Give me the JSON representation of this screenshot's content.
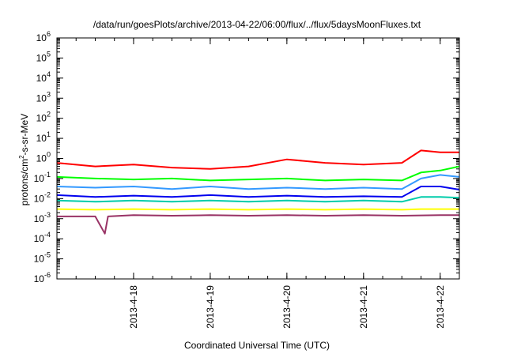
{
  "chart_data": {
    "type": "line",
    "title": "/data/run/goesPlots/archive/2013-04-22/06:00/flux/../flux/5daysMoonFluxes.txt",
    "xlabel": "Coordinated Universal Time (UTC)",
    "ylabel": {
      "pre": "protons/cm",
      "sup": "2",
      "post": "-s-sr-MeV"
    },
    "yscale": "log",
    "ylim": [
      1e-06,
      1000000.0
    ],
    "xlim": [
      "2013-04-17 00:00",
      "2013-04-22 06:00"
    ],
    "x_ticks": [
      {
        "x": "2013-04-18 00:00",
        "label": "2013-4-18"
      },
      {
        "x": "2013-04-19 00:00",
        "label": "2013-4-19"
      },
      {
        "x": "2013-04-20 00:00",
        "label": "2013-4-20"
      },
      {
        "x": "2013-04-21 00:00",
        "label": "2013-4-21"
      },
      {
        "x": "2013-04-22 00:00",
        "label": "2013-4-22"
      }
    ],
    "y_ticks": [
      {
        "value": 1e-06,
        "base": "10",
        "exp": "-6"
      },
      {
        "value": 1e-05,
        "base": "10",
        "exp": "-5"
      },
      {
        "value": 0.0001,
        "base": "10",
        "exp": "-4"
      },
      {
        "value": 0.001,
        "base": "10",
        "exp": "-3"
      },
      {
        "value": 0.01,
        "base": "10",
        "exp": "-2"
      },
      {
        "value": 0.1,
        "base": "10",
        "exp": "-1"
      },
      {
        "value": 1.0,
        "base": "10",
        "exp": "0"
      },
      {
        "value": 10.0,
        "base": "10",
        "exp": "1"
      },
      {
        "value": 100.0,
        "base": "10",
        "exp": "2"
      },
      {
        "value": 1000.0,
        "base": "10",
        "exp": "3"
      },
      {
        "value": 10000.0,
        "base": "10",
        "exp": "4"
      },
      {
        "value": 100000.0,
        "base": "10",
        "exp": "5"
      },
      {
        "value": 1000000.0,
        "base": "10",
        "exp": "6"
      }
    ],
    "grid": false,
    "legend": "none",
    "series": [
      {
        "color": "#ff0000",
        "x": [
          "2013-04-17 00:00",
          "2013-04-17 12:00",
          "2013-04-18 00:00",
          "2013-04-18 12:00",
          "2013-04-19 00:00",
          "2013-04-19 12:00",
          "2013-04-20 00:00",
          "2013-04-20 12:00",
          "2013-04-21 00:00",
          "2013-04-21 12:00",
          "2013-04-21 18:00",
          "2013-04-22 00:00",
          "2013-04-22 06:00"
        ],
        "y": [
          0.6,
          0.4,
          0.5,
          0.35,
          0.3,
          0.4,
          0.9,
          0.6,
          0.5,
          0.6,
          2.5,
          2.0,
          2.0
        ]
      },
      {
        "color": "#00ff00",
        "x": [
          "2013-04-17 00:00",
          "2013-04-17 12:00",
          "2013-04-18 00:00",
          "2013-04-18 12:00",
          "2013-04-19 00:00",
          "2013-04-19 12:00",
          "2013-04-20 00:00",
          "2013-04-20 12:00",
          "2013-04-21 00:00",
          "2013-04-21 12:00",
          "2013-04-21 18:00",
          "2013-04-22 00:00",
          "2013-04-22 06:00"
        ],
        "y": [
          0.12,
          0.1,
          0.09,
          0.1,
          0.08,
          0.09,
          0.1,
          0.08,
          0.09,
          0.08,
          0.2,
          0.25,
          0.4
        ]
      },
      {
        "color": "#3399ff",
        "x": [
          "2013-04-17 00:00",
          "2013-04-17 12:00",
          "2013-04-18 00:00",
          "2013-04-18 12:00",
          "2013-04-19 00:00",
          "2013-04-19 12:00",
          "2013-04-20 00:00",
          "2013-04-20 12:00",
          "2013-04-21 00:00",
          "2013-04-21 12:00",
          "2013-04-21 18:00",
          "2013-04-22 00:00",
          "2013-04-22 06:00"
        ],
        "y": [
          0.04,
          0.035,
          0.04,
          0.03,
          0.04,
          0.03,
          0.035,
          0.03,
          0.035,
          0.03,
          0.1,
          0.15,
          0.12
        ]
      },
      {
        "color": "#0000ee",
        "x": [
          "2013-04-17 00:00",
          "2013-04-17 12:00",
          "2013-04-18 00:00",
          "2013-04-18 12:00",
          "2013-04-19 00:00",
          "2013-04-19 12:00",
          "2013-04-20 00:00",
          "2013-04-20 12:00",
          "2013-04-21 00:00",
          "2013-04-21 12:00",
          "2013-04-21 18:00",
          "2013-04-22 00:00",
          "2013-04-22 06:00"
        ],
        "y": [
          0.015,
          0.012,
          0.014,
          0.012,
          0.015,
          0.012,
          0.014,
          0.012,
          0.013,
          0.012,
          0.04,
          0.04,
          0.028
        ]
      },
      {
        "color": "#00ccaa",
        "x": [
          "2013-04-17 00:00",
          "2013-04-17 12:00",
          "2013-04-18 00:00",
          "2013-04-18 12:00",
          "2013-04-19 00:00",
          "2013-04-19 12:00",
          "2013-04-20 00:00",
          "2013-04-20 12:00",
          "2013-04-21 00:00",
          "2013-04-21 12:00",
          "2013-04-21 18:00",
          "2013-04-22 00:00",
          "2013-04-22 06:00"
        ],
        "y": [
          0.008,
          0.007,
          0.008,
          0.007,
          0.008,
          0.007,
          0.008,
          0.007,
          0.008,
          0.007,
          0.012,
          0.012,
          0.011
        ]
      },
      {
        "color": "#ffff00",
        "x": [
          "2013-04-17 00:00",
          "2013-04-17 12:00",
          "2013-04-18 00:00",
          "2013-04-18 12:00",
          "2013-04-19 00:00",
          "2013-04-19 12:00",
          "2013-04-20 00:00",
          "2013-04-20 12:00",
          "2013-04-21 00:00",
          "2013-04-21 12:00",
          "2013-04-21 18:00",
          "2013-04-22 00:00",
          "2013-04-22 06:00"
        ],
        "y": [
          0.003,
          0.0028,
          0.003,
          0.0028,
          0.003,
          0.0028,
          0.003,
          0.0028,
          0.003,
          0.0028,
          0.003,
          0.003,
          0.003
        ]
      },
      {
        "color": "#993366",
        "x": [
          "2013-04-17 00:00",
          "2013-04-17 12:00",
          "2013-04-17 15:00",
          "2013-04-17 16:00",
          "2013-04-18 00:00",
          "2013-04-18 12:00",
          "2013-04-19 00:00",
          "2013-04-19 12:00",
          "2013-04-20 00:00",
          "2013-04-20 12:00",
          "2013-04-21 00:00",
          "2013-04-21 12:00",
          "2013-04-22 00:00",
          "2013-04-22 06:00"
        ],
        "y": [
          0.0013,
          0.0013,
          0.00018,
          0.0013,
          0.0015,
          0.0014,
          0.0015,
          0.0014,
          0.0015,
          0.0014,
          0.0015,
          0.0014,
          0.0015,
          0.0015
        ]
      }
    ]
  }
}
